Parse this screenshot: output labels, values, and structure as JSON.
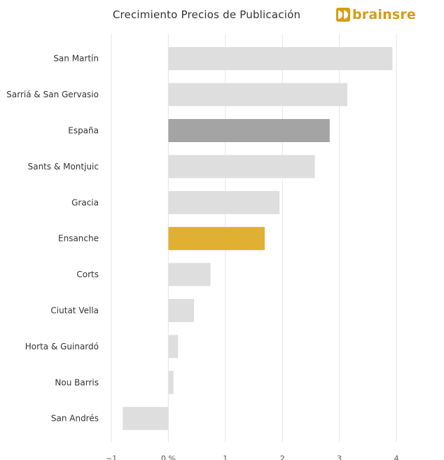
{
  "header": {
    "title": "Crecimiento Precios de Publicación",
    "logo_text": "brainsre",
    "logo_icon": "brainsre-logo-icon"
  },
  "colors": {
    "default": "#dedede",
    "highlight_national": "#a4a4a4",
    "highlight_selected": "#e0b032",
    "brand": "#d89b12",
    "grid": "#e6e6e6"
  },
  "chart_data": {
    "type": "bar",
    "orientation": "horizontal",
    "title": "Crecimiento Precios de Publicación",
    "categories": [
      "San Martín",
      "Sarriá & San Gervasio",
      "España",
      "Sants & Montjuic",
      "Gracia",
      "Ensanche",
      "Corts",
      "Ciutat Vella",
      "Horta & Guinardó",
      "Nou Barris",
      "San Andrés"
    ],
    "values": [
      3.93,
      3.14,
      2.83,
      2.57,
      1.95,
      1.69,
      0.74,
      0.45,
      0.17,
      0.09,
      -0.8
    ],
    "highlight": {
      "España": "highlight_national",
      "Ensanche": "highlight_selected"
    },
    "xlim": [
      -1,
      4
    ],
    "xticks": [
      -1,
      0,
      1,
      2,
      3,
      4
    ],
    "xtick_labels": [
      "−1",
      "0 %",
      "1",
      "2",
      "3",
      "4"
    ],
    "xlabel": "",
    "ylabel": "",
    "grid": true,
    "legend": "none"
  }
}
